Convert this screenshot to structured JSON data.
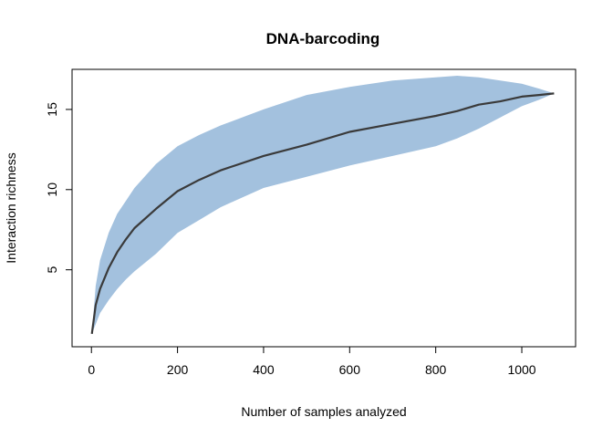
{
  "chart_data": {
    "type": "area",
    "title": "DNA-barcoding",
    "xlabel": "Number of samples analyzed",
    "ylabel": "Interaction richness",
    "xlim": [
      -45,
      1125
    ],
    "ylim": [
      0.2,
      17.5
    ],
    "x_ticks": [
      0,
      200,
      400,
      600,
      800,
      1000
    ],
    "y_ticks": [
      5,
      10,
      15
    ],
    "grid": false,
    "colors": {
      "band": "#a3c1de",
      "line": "#3a3a3a"
    },
    "x": [
      1,
      10,
      20,
      40,
      60,
      80,
      100,
      150,
      200,
      250,
      300,
      400,
      500,
      600,
      700,
      800,
      850,
      900,
      950,
      1000,
      1040,
      1075
    ],
    "series": [
      {
        "role": "mean",
        "values": [
          1.0,
          2.8,
          3.8,
          5.1,
          6.1,
          6.9,
          7.6,
          8.8,
          9.9,
          10.6,
          11.2,
          12.1,
          12.8,
          13.6,
          14.1,
          14.6,
          14.9,
          15.3,
          15.5,
          15.8,
          15.9,
          16.0
        ]
      },
      {
        "role": "lower",
        "values": [
          1.0,
          1.6,
          2.3,
          3.1,
          3.8,
          4.4,
          4.9,
          6.0,
          7.3,
          8.1,
          8.9,
          10.1,
          10.8,
          11.5,
          12.1,
          12.7,
          13.2,
          13.8,
          14.5,
          15.2,
          15.6,
          16.0
        ]
      },
      {
        "role": "upper",
        "values": [
          1.0,
          4.0,
          5.6,
          7.3,
          8.5,
          9.3,
          10.1,
          11.6,
          12.7,
          13.4,
          14.0,
          15.0,
          15.9,
          16.4,
          16.8,
          17.0,
          17.1,
          17.0,
          16.8,
          16.6,
          16.3,
          16.0
        ]
      }
    ]
  }
}
